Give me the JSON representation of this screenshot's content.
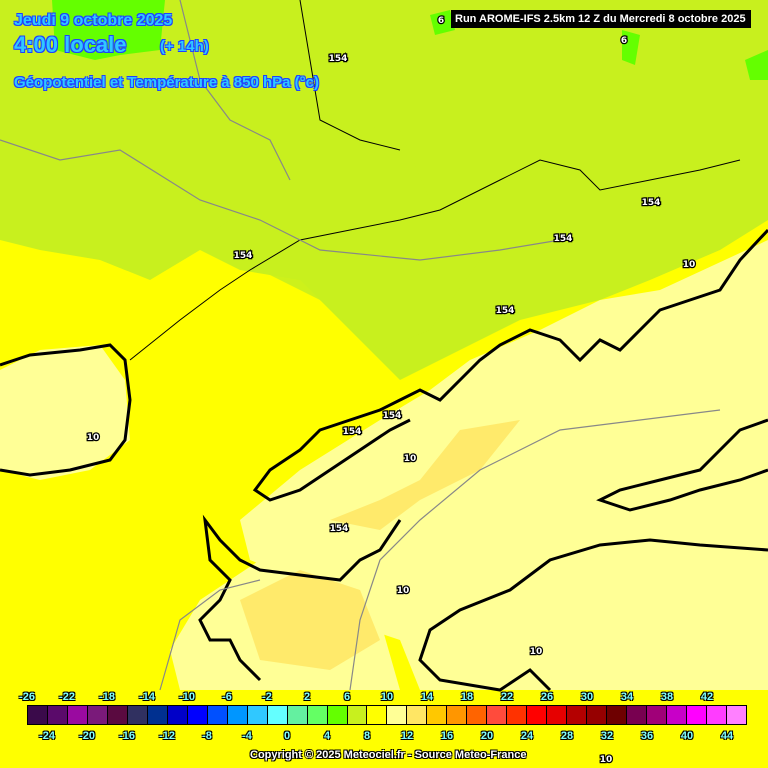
{
  "header": {
    "date": "Jeudi 9 octobre 2025",
    "time": "4:00 locale",
    "lead": "(+ 14h)",
    "parameter": "Géopotentiel et Température à 850 hPa (°c)",
    "run": "Run AROME-IFS 2.5km 12 Z du Mercredi 8 octobre 2025"
  },
  "colorbar": {
    "unit": "°c",
    "colors": [
      "#3a0a4a",
      "#5a0a6a",
      "#9a0aa0",
      "#7a1a7a",
      "#5a0a40",
      "#303060",
      "#003090",
      "#0000c8",
      "#0000ff",
      "#0050ff",
      "#0096ff",
      "#30c8ff",
      "#64ffff",
      "#64f0a0",
      "#64ff64",
      "#64ff00",
      "#c8f01e",
      "#ffff00",
      "#ffff96",
      "#ffe664",
      "#ffc800",
      "#ff9600",
      "#ff6400",
      "#ff4b3c",
      "#ff3200",
      "#ff0000",
      "#e60000",
      "#b40000",
      "#960000",
      "#6e0000",
      "#780050",
      "#a00078",
      "#c800c8",
      "#ff00ff",
      "#ff3cff",
      "#ff80ff"
    ],
    "top_labels": [
      "-26",
      "-22",
      "-18",
      "-14",
      "-10",
      "-6",
      "-2",
      "2",
      "6",
      "10",
      "14",
      "18",
      "22",
      "26",
      "30",
      "34",
      "38",
      "42"
    ],
    "bottom_labels": [
      "-24",
      "-20",
      "-16",
      "-12",
      "-8",
      "-4",
      "0",
      "4",
      "8",
      "12",
      "16",
      "20",
      "24",
      "28",
      "32",
      "36",
      "40",
      "44"
    ]
  },
  "contour_labels": [
    "6",
    "6",
    "154",
    "154",
    "154",
    "154",
    "154",
    "154",
    "154",
    "154",
    "10",
    "10",
    "10",
    "10",
    "10",
    "10"
  ],
  "field_colors": {
    "t8_10": "#c8f01e",
    "t6_8": "#64ff00",
    "t10_12": "#ffff00",
    "t12_14": "#ffff96",
    "t14_16": "#ffe664"
  },
  "copyright": "Copyright © 2025 Meteociel.fr - Source Meteo-France"
}
